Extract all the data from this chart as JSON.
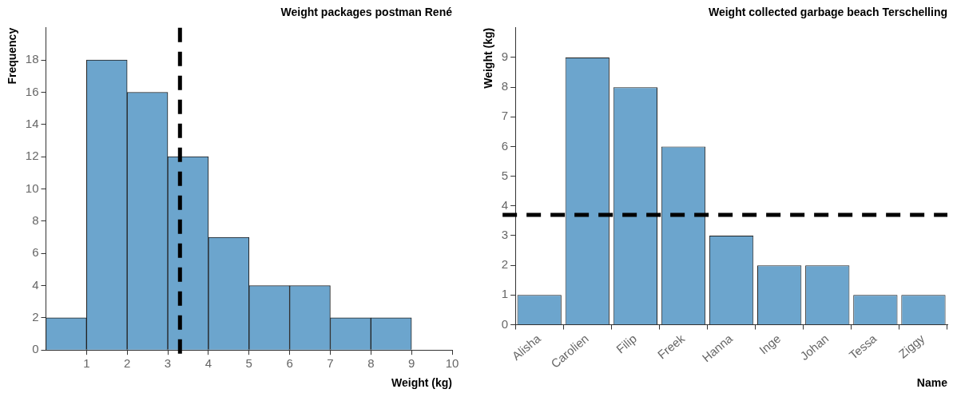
{
  "chart_data": [
    {
      "type": "histogram",
      "title": "Weight packages postman René",
      "xlabel": "Weight (kg)",
      "ylabel": "Frequency",
      "bins": [
        0,
        1,
        2,
        3,
        4,
        5,
        6,
        7,
        8,
        9
      ],
      "values": [
        2,
        18,
        16,
        12,
        7,
        4,
        4,
        2,
        2
      ],
      "color": "#6ca5cd",
      "xlim": [
        0,
        10
      ],
      "xticks": [
        1,
        2,
        3,
        4,
        5,
        6,
        7,
        8,
        9,
        10
      ],
      "ylim": [
        0,
        20
      ],
      "yticks": [
        0,
        2,
        4,
        6,
        8,
        10,
        12,
        14,
        16,
        18
      ],
      "ref_lines": [
        {
          "axis": "x",
          "value": 3.3,
          "color": "#000000",
          "line_style": "dashed"
        }
      ]
    },
    {
      "type": "bar",
      "title": "Weight collected garbage beach Terschelling",
      "xlabel": "Name",
      "ylabel": "Weight (kg)",
      "categories": [
        "Alisha",
        "Carolien",
        "Filip",
        "Freek",
        "Hanna",
        "Inge",
        "Johan",
        "Tessa",
        "Ziggy"
      ],
      "values": [
        1,
        9,
        8,
        6,
        3,
        2,
        2,
        1,
        1
      ],
      "color": "#6ca5cd",
      "ylim": [
        0,
        10
      ],
      "yticks": [
        0,
        1,
        2,
        3,
        4,
        5,
        6,
        7,
        8,
        9
      ],
      "ref_lines": [
        {
          "axis": "y",
          "value": 3.7,
          "color": "#000000",
          "line_style": "dashed"
        }
      ]
    }
  ]
}
